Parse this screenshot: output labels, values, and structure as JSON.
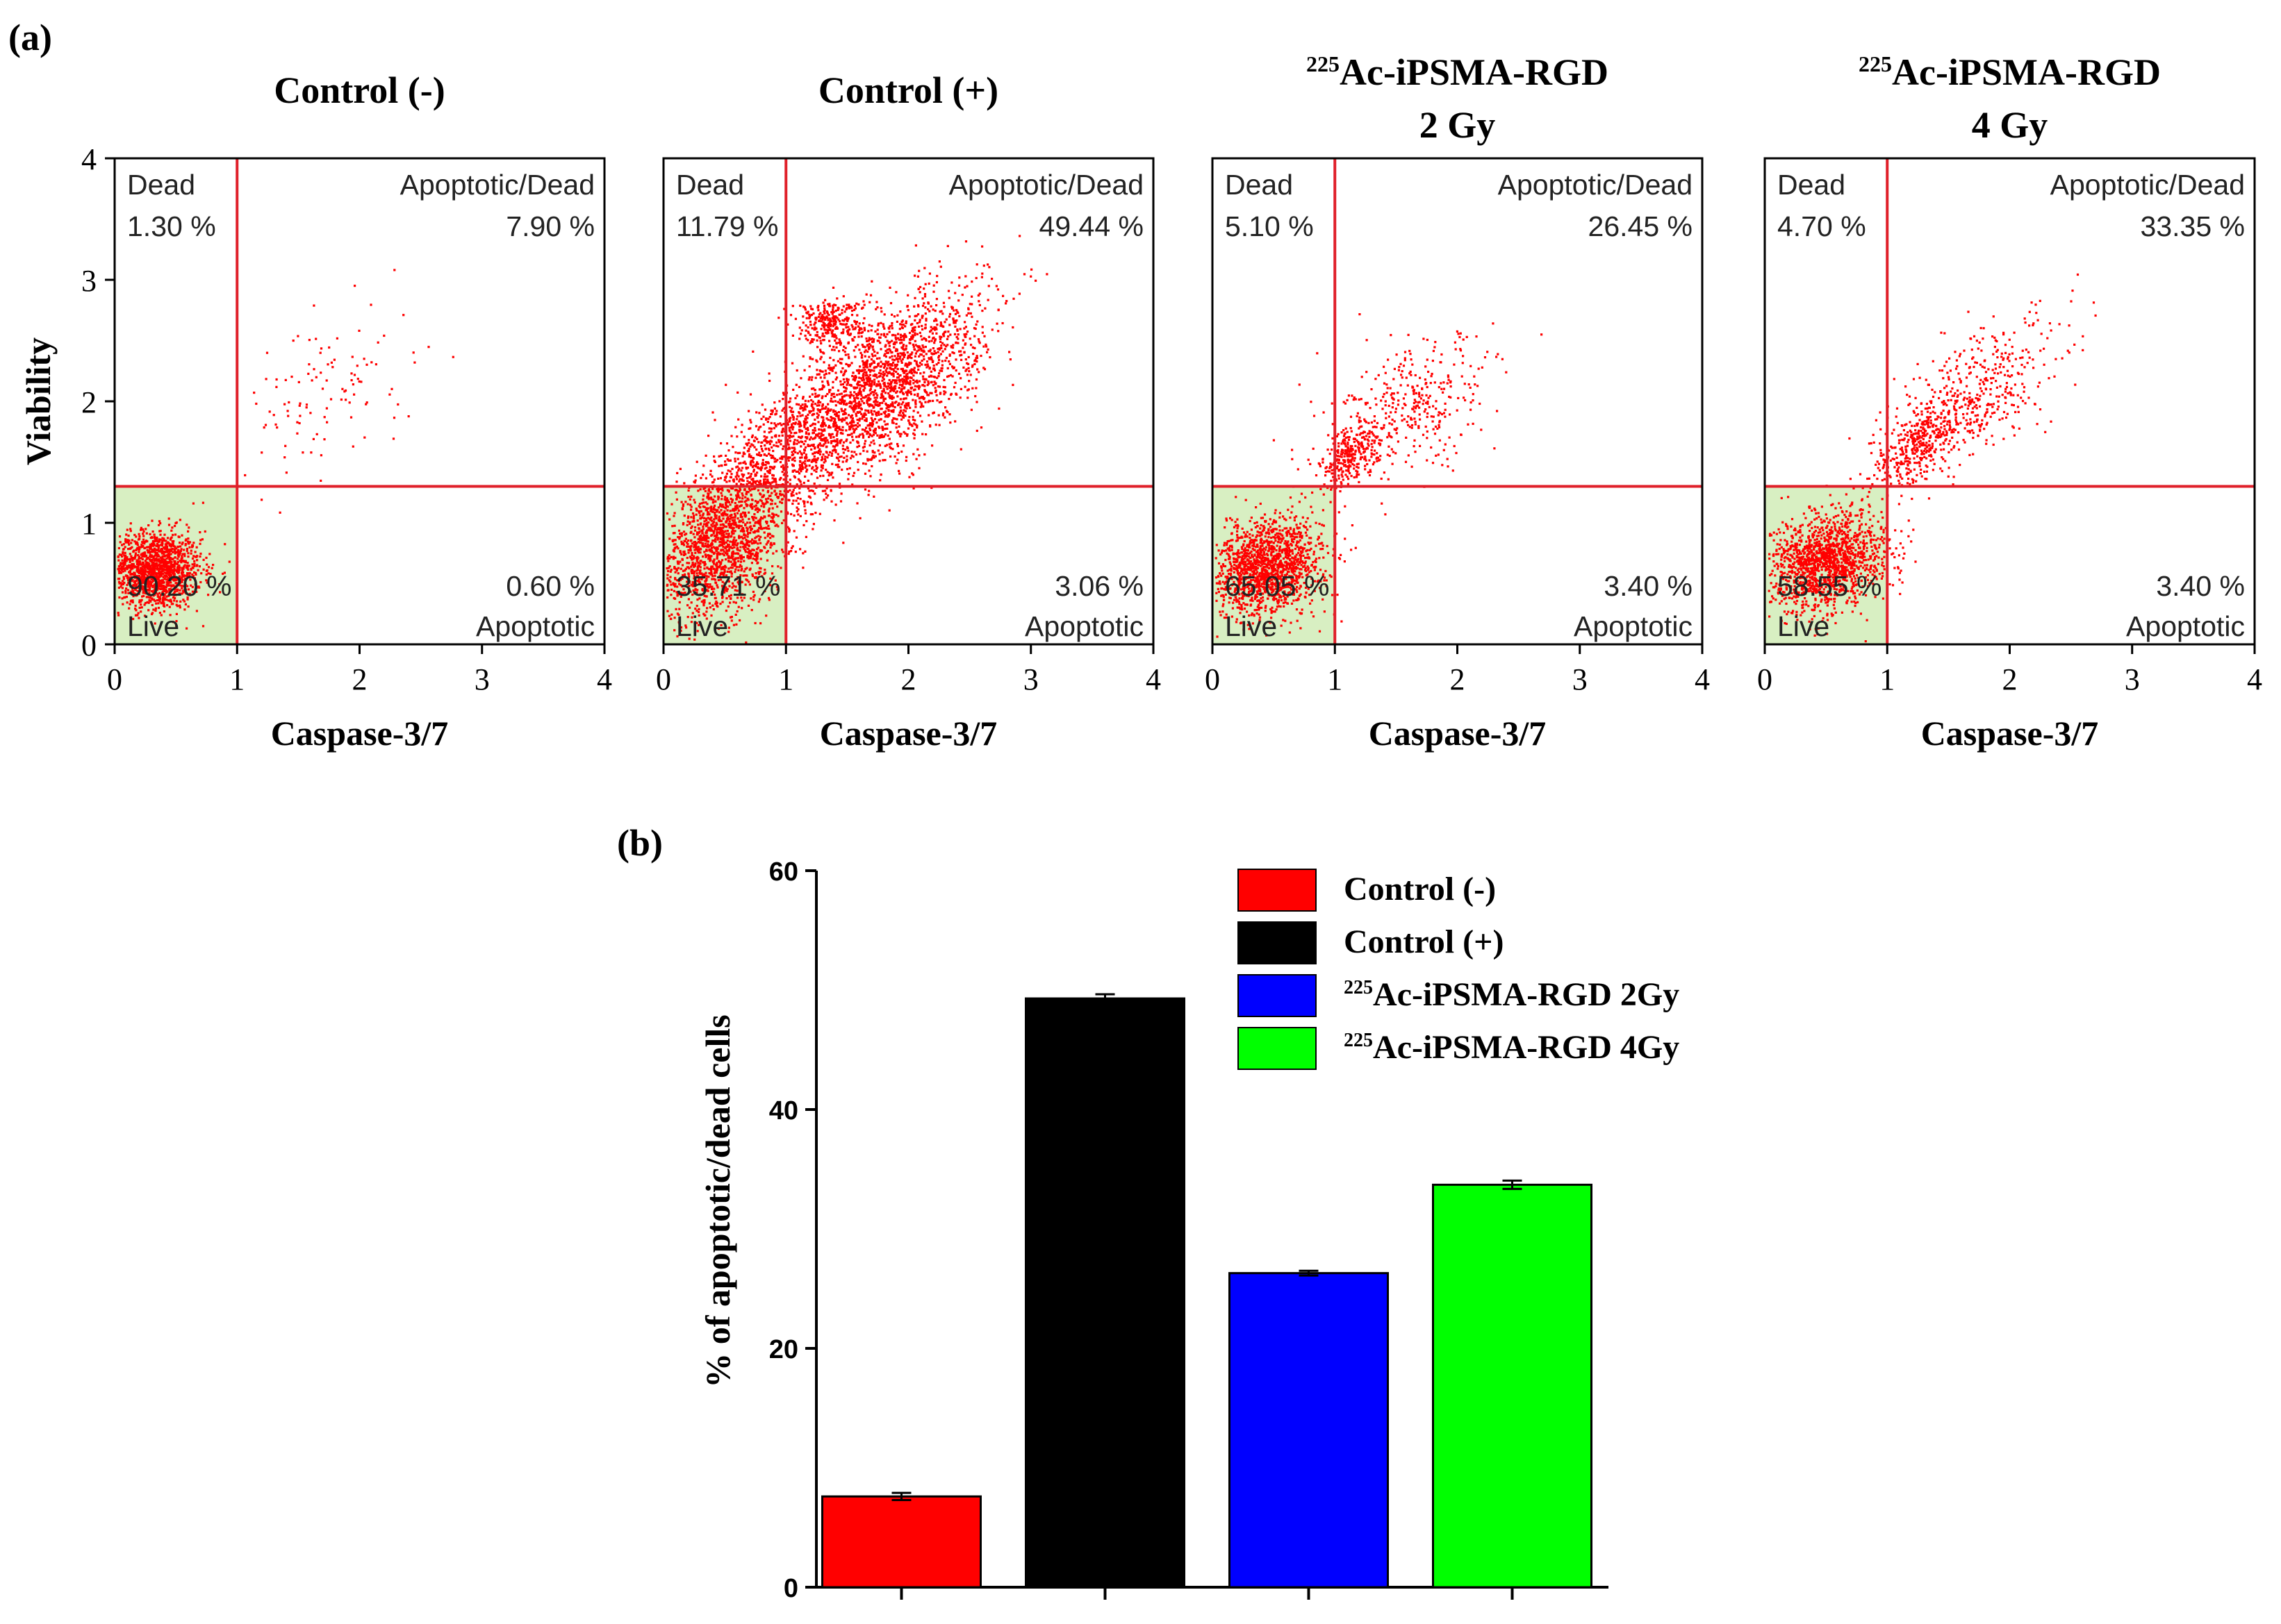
{
  "panel_labels": {
    "a": "(a)",
    "b": "(b)"
  },
  "colors": {
    "gate_line": "#e0202a",
    "live_fill": "#d8efc2",
    "dot": "#ff0000",
    "bar_control_neg": "#ff0000",
    "bar_control_pos": "#000000",
    "bar_2gy": "#0000ff",
    "bar_4gy": "#00ff00"
  },
  "chart_data": [
    {
      "type": "scatter",
      "title": "Control (-)",
      "title_sup": "",
      "subtitle": "",
      "xlabel": "Caspase-3/7",
      "ylabel": "Viability",
      "xlim": [
        0,
        4
      ],
      "ylim": [
        0,
        4
      ],
      "xticks": [
        "0",
        "1",
        "2",
        "3",
        "4"
      ],
      "yticks": [
        "0",
        "1",
        "2",
        "3",
        "4"
      ],
      "gates": {
        "x": 1.0,
        "y": 1.3
      },
      "quadrants": {
        "dead_label": "Dead",
        "dead_value": "1.30 %",
        "apoptotic_dead_label": "Apoptotic/Dead",
        "apoptotic_dead_value": "7.90 %",
        "live_label": "Live",
        "live_value": "90.20 %",
        "apoptotic_label": "Apoptotic",
        "apoptotic_value": "0.60 %"
      },
      "populations": [
        {
          "cx": 0.32,
          "cy": 0.62,
          "sx": 0.19,
          "sy": 0.16,
          "r": 0,
          "n": 1500
        },
        {
          "cx": 1.75,
          "cy": 2.1,
          "sx": 0.35,
          "sy": 0.35,
          "r": 0.3,
          "n": 110
        }
      ]
    },
    {
      "type": "scatter",
      "title": "Control (+)",
      "title_sup": "",
      "subtitle": "",
      "xlabel": "Caspase-3/7",
      "ylabel": "",
      "xlim": [
        0,
        4
      ],
      "ylim": [
        0,
        4
      ],
      "xticks": [
        "0",
        "1",
        "2",
        "3",
        "4"
      ],
      "yticks": [],
      "gates": {
        "x": 1.0,
        "y": 1.3
      },
      "quadrants": {
        "dead_label": "Dead",
        "dead_value": "11.79 %",
        "apoptotic_dead_label": "Apoptotic/Dead",
        "apoptotic_dead_value": "49.44 %",
        "live_label": "Live",
        "live_value": "35.71 %",
        "apoptotic_label": "Apoptotic",
        "apoptotic_value": "3.06 %"
      },
      "populations": [
        {
          "cx": 0.42,
          "cy": 0.78,
          "sx": 0.28,
          "sy": 0.28,
          "r": 0.3,
          "n": 1500
        },
        {
          "cx": 1.75,
          "cy": 2.1,
          "sx": 0.42,
          "sy": 0.4,
          "r": 0.65,
          "n": 2200
        },
        {
          "cx": 1.35,
          "cy": 2.65,
          "sx": 0.15,
          "sy": 0.1,
          "r": 0,
          "n": 300
        },
        {
          "cx": 0.85,
          "cy": 1.45,
          "sx": 0.3,
          "sy": 0.35,
          "r": 0.6,
          "n": 800
        }
      ]
    },
    {
      "type": "scatter",
      "title": "Ac-iPSMA-RGD",
      "title_sup": "225",
      "subtitle": "2 Gy",
      "xlabel": "Caspase-3/7",
      "ylabel": "",
      "xlim": [
        0,
        4
      ],
      "ylim": [
        0,
        4
      ],
      "xticks": [
        "0",
        "1",
        "2",
        "3",
        "4"
      ],
      "yticks": [],
      "gates": {
        "x": 1.0,
        "y": 1.3
      },
      "quadrants": {
        "dead_label": "Dead",
        "dead_value": "5.10 %",
        "apoptotic_dead_label": "Apoptotic/Dead",
        "apoptotic_dead_value": "26.45 %",
        "live_label": "Live",
        "live_value": "65.05 %",
        "apoptotic_label": "Apoptotic",
        "apoptotic_value": "3.40 %"
      },
      "populations": [
        {
          "cx": 0.45,
          "cy": 0.65,
          "sx": 0.22,
          "sy": 0.2,
          "r": 0.2,
          "n": 1500
        },
        {
          "cx": 1.1,
          "cy": 1.55,
          "sx": 0.12,
          "sy": 0.12,
          "r": 0.5,
          "n": 250
        },
        {
          "cx": 1.6,
          "cy": 1.9,
          "sx": 0.35,
          "sy": 0.3,
          "r": 0.5,
          "n": 400
        }
      ]
    },
    {
      "type": "scatter",
      "title": "Ac-iPSMA-RGD",
      "title_sup": "225",
      "subtitle": "4 Gy",
      "xlabel": "Caspase-3/7",
      "ylabel": "",
      "xlim": [
        0,
        4
      ],
      "ylim": [
        0,
        4
      ],
      "xticks": [
        "0",
        "1",
        "2",
        "3",
        "4"
      ],
      "yticks": [],
      "gates": {
        "x": 1.0,
        "y": 1.3
      },
      "quadrants": {
        "dead_label": "Dead",
        "dead_value": "4.70 %",
        "apoptotic_dead_label": "Apoptotic/Dead",
        "apoptotic_dead_value": "33.35 %",
        "live_label": "Live",
        "live_value": "58.55 %",
        "apoptotic_label": "Apoptotic",
        "apoptotic_value": "3.40 %"
      },
      "populations": [
        {
          "cx": 0.5,
          "cy": 0.7,
          "sx": 0.24,
          "sy": 0.2,
          "r": 0.2,
          "n": 1500
        },
        {
          "cx": 1.25,
          "cy": 1.65,
          "sx": 0.18,
          "sy": 0.18,
          "r": 0.6,
          "n": 350
        },
        {
          "cx": 1.7,
          "cy": 2.05,
          "sx": 0.35,
          "sy": 0.3,
          "r": 0.6,
          "n": 450
        }
      ]
    },
    {
      "type": "bar",
      "ylabel": "% of apoptotic/dead cells",
      "xlabel": "",
      "ylim": [
        0,
        60
      ],
      "yticks": [
        0,
        20,
        40,
        60
      ],
      "categories": [
        "Control (-)",
        "Control (+)",
        "Ac-iPSMA-RGD 2Gy",
        "Ac-iPSMA-RGD 4Gy"
      ],
      "series": [
        {
          "name": "Control (-)",
          "name_sup": "",
          "value": 7.6,
          "error": 0.3,
          "color": "#ff0000"
        },
        {
          "name": "Control (+)",
          "name_sup": "",
          "value": 49.3,
          "error": 0.35,
          "color": "#000000"
        },
        {
          "name": "Ac-iPSMA-RGD 2Gy",
          "name_sup": "225",
          "value": 26.3,
          "error": 0.2,
          "color": "#0000ff"
        },
        {
          "name": "Ac-iPSMA-RGD 4Gy",
          "name_sup": "225",
          "value": 33.7,
          "error": 0.35,
          "color": "#00ff00"
        }
      ],
      "legend_position": "top-right"
    }
  ]
}
